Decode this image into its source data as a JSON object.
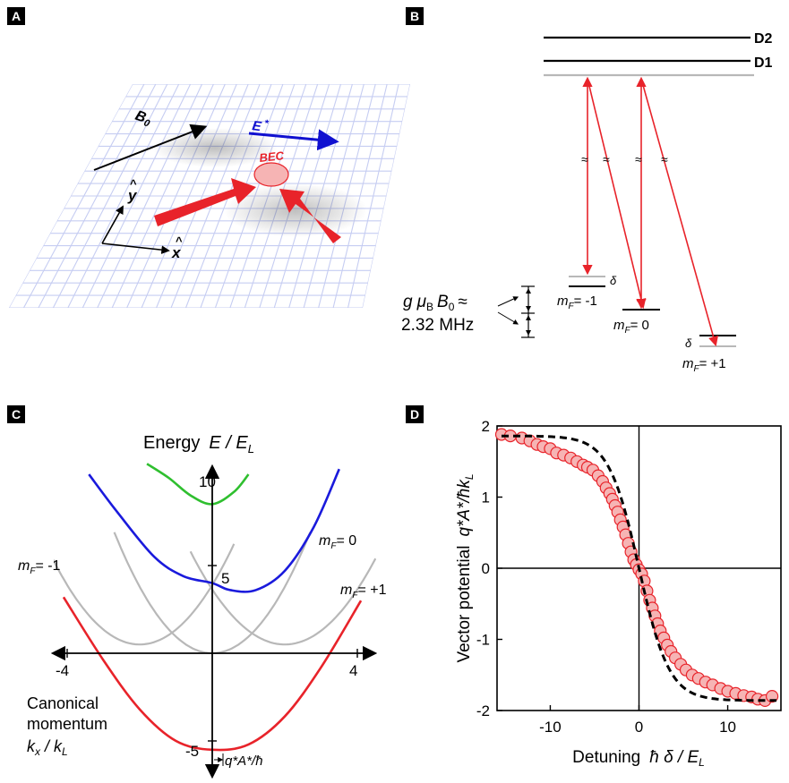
{
  "panels": {
    "A": {
      "label": "A",
      "b0_label": "B",
      "b0_sub": "0",
      "e_label": "E",
      "e_sup": "*",
      "bec_label": "BEC",
      "y_label": "y",
      "x_label": "x",
      "hat": "^",
      "colors": {
        "field": "#1010d0",
        "beam": "#e8232a",
        "bec": "#f6b4b4"
      }
    },
    "B": {
      "label": "B",
      "d2": "D2",
      "d1": "D1",
      "delta": "δ",
      "split_g": "g",
      "split_mu": "μ",
      "split_musub": "B",
      "split_b": "B",
      "split_bsub": "0",
      "split_approx": "≈",
      "split_value": "2.32 MHz",
      "break_mark": "≈",
      "levels": [
        {
          "m": "m",
          "sub": "F",
          "eq": "= -1"
        },
        {
          "m": "m",
          "sub": "F",
          "eq": "= 0"
        },
        {
          "m": "m",
          "sub": "F",
          "eq": "= +1"
        }
      ]
    },
    "C": {
      "label": "C",
      "energy_label": "Energy",
      "energy_sym": "E / E",
      "energy_sub": "L",
      "tick_10": "10",
      "tick_5": "5",
      "tick_m5": "-5",
      "tick_m4": "-4",
      "tick_4": "4",
      "mf_m1": "= -1",
      "mf_0": "= 0",
      "mf_p1": "= +1",
      "mf_sym": "m",
      "mf_sub": "F",
      "canonical": "Canonical",
      "momentum": "momentum",
      "kx": "k",
      "kx_sub": "x",
      "kx_div": " / k",
      "kl_sub": "L",
      "shift": "q*A*/ħ"
    },
    "D": {
      "label": "D",
      "ylabel_text": "Vector potential",
      "ylabel_sym": "q*A*/ħk",
      "ylabel_sub": "L",
      "xlabel_text": "Detuning",
      "xlabel_sym": "ħ δ / E",
      "xlabel_sub": "L"
    }
  },
  "chart_data": [
    {
      "type": "line",
      "panel": "C",
      "xlabel": "k_x / k_L",
      "ylabel": "E / E_L",
      "xlim": [
        -4.5,
        4.5
      ],
      "ylim": [
        -7,
        11
      ],
      "series": [
        {
          "color": "#e8232a",
          "kind": "lowest",
          "x": [
            -4.1,
            -3,
            -2,
            -1,
            0,
            1,
            2,
            3,
            4.1
          ],
          "y": [
            3.2,
            -0.4,
            -3.2,
            -5.0,
            -5.5,
            -5.2,
            -3.6,
            -0.8,
            3.0
          ]
        },
        {
          "color": "#1a1adc",
          "kind": "middle",
          "x": [
            -3.4,
            -2.6,
            -1.6,
            -0.8,
            0,
            0.5,
            1.2,
            2,
            2.8,
            3.5
          ],
          "y": [
            10.2,
            8.0,
            5.5,
            4.4,
            4.0,
            3.6,
            3.6,
            4.7,
            7.2,
            10.5
          ]
        },
        {
          "color": "#2fbf2f",
          "kind": "upper",
          "x": [
            -1.8,
            -1.2,
            -0.6,
            0,
            0.6,
            1.0
          ],
          "y": [
            10.8,
            10.0,
            9.0,
            8.5,
            9.2,
            10.2
          ]
        },
        {
          "color": "#b8b8b8",
          "kind": "bare",
          "label": "m_F = -1",
          "x": [
            -4.5,
            -2,
            0.6
          ],
          "y": [
            5.8,
            0.5,
            5.8
          ]
        },
        {
          "color": "#b8b8b8",
          "kind": "bare",
          "label": "m_F = 0",
          "x": [
            -2.7,
            0,
            2.7
          ],
          "y": [
            6.9,
            0,
            6.9
          ]
        },
        {
          "color": "#b8b8b8",
          "kind": "bare",
          "label": "m_F = +1",
          "x": [
            -0.6,
            2,
            4.5
          ],
          "y": [
            5.8,
            0.5,
            5.8
          ]
        }
      ]
    },
    {
      "type": "scatter",
      "panel": "D",
      "xlim": [
        -16,
        16
      ],
      "ylim": [
        -2,
        2
      ],
      "xticks": [
        -10,
        0,
        10
      ],
      "yticks": [
        -2,
        -1,
        0,
        1,
        2
      ],
      "points": [
        {
          "x": -15.5,
          "y": 1.88
        },
        {
          "x": -14.5,
          "y": 1.86
        },
        {
          "x": -13.2,
          "y": 1.83
        },
        {
          "x": -12.3,
          "y": 1.79
        },
        {
          "x": -11.5,
          "y": 1.74
        },
        {
          "x": -10.8,
          "y": 1.71
        },
        {
          "x": -10.0,
          "y": 1.68
        },
        {
          "x": -9.3,
          "y": 1.62
        },
        {
          "x": -8.5,
          "y": 1.59
        },
        {
          "x": -7.7,
          "y": 1.55
        },
        {
          "x": -7.0,
          "y": 1.5
        },
        {
          "x": -6.3,
          "y": 1.45
        },
        {
          "x": -5.8,
          "y": 1.42
        },
        {
          "x": -5.2,
          "y": 1.38
        },
        {
          "x": -4.6,
          "y": 1.3
        },
        {
          "x": -4.1,
          "y": 1.22
        },
        {
          "x": -3.7,
          "y": 1.13
        },
        {
          "x": -3.3,
          "y": 1.05
        },
        {
          "x": -3.0,
          "y": 0.97
        },
        {
          "x": -2.7,
          "y": 0.88
        },
        {
          "x": -2.4,
          "y": 0.79
        },
        {
          "x": -2.1,
          "y": 0.68
        },
        {
          "x": -1.8,
          "y": 0.58
        },
        {
          "x": -1.5,
          "y": 0.47
        },
        {
          "x": -1.2,
          "y": 0.35
        },
        {
          "x": -0.9,
          "y": 0.23
        },
        {
          "x": -0.6,
          "y": 0.12
        },
        {
          "x": -0.3,
          "y": 0.05
        },
        {
          "x": 0.0,
          "y": -0.02
        },
        {
          "x": 0.3,
          "y": -0.08
        },
        {
          "x": 0.6,
          "y": -0.18
        },
        {
          "x": 0.9,
          "y": -0.32
        },
        {
          "x": 1.2,
          "y": -0.45
        },
        {
          "x": 1.5,
          "y": -0.56
        },
        {
          "x": 1.8,
          "y": -0.67
        },
        {
          "x": 2.1,
          "y": -0.78
        },
        {
          "x": 2.4,
          "y": -0.88
        },
        {
          "x": 2.8,
          "y": -0.98
        },
        {
          "x": 3.2,
          "y": -1.08
        },
        {
          "x": 3.6,
          "y": -1.17
        },
        {
          "x": 4.1,
          "y": -1.26
        },
        {
          "x": 4.7,
          "y": -1.35
        },
        {
          "x": 5.3,
          "y": -1.43
        },
        {
          "x": 6.0,
          "y": -1.5
        },
        {
          "x": 6.7,
          "y": -1.55
        },
        {
          "x": 7.5,
          "y": -1.6
        },
        {
          "x": 8.3,
          "y": -1.64
        },
        {
          "x": 9.2,
          "y": -1.69
        },
        {
          "x": 10.0,
          "y": -1.73
        },
        {
          "x": 10.9,
          "y": -1.76
        },
        {
          "x": 11.8,
          "y": -1.79
        },
        {
          "x": 12.7,
          "y": -1.81
        },
        {
          "x": 13.4,
          "y": -1.84
        },
        {
          "x": 14.2,
          "y": -1.86
        },
        {
          "x": 15.0,
          "y": -1.8
        }
      ],
      "fit_amplitude": 2.0,
      "fit_width": 3.4
    }
  ]
}
